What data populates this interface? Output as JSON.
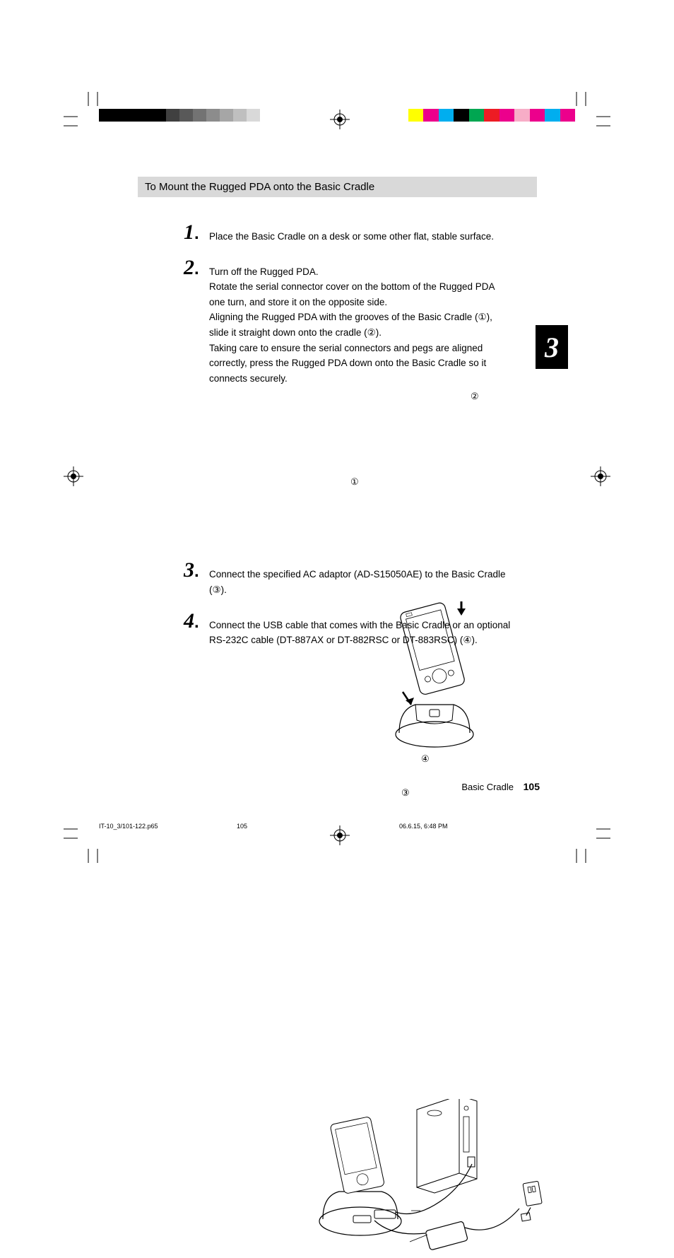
{
  "section_heading": "To Mount the Rugged PDA onto the Basic Cradle",
  "steps": [
    {
      "num": "1",
      "body": "Place the Basic Cradle on a desk or some other flat, stable surface."
    },
    {
      "num": "2",
      "body": "Turn off the Rugged PDA.\nRotate the serial connector cover on the bottom of the Rugged PDA one turn, and store it on the opposite side.\nAligning the Rugged PDA with the grooves of the Basic Cradle (①), slide it straight down onto the cradle (②).\nTaking care to ensure the serial connectors and pegs are aligned correctly, press the Rugged PDA down onto the Basic Cradle so it connects securely."
    },
    {
      "num": "3",
      "body": "Connect the specified AC adaptor (AD-S15050AE) to the Basic Cradle (③)."
    },
    {
      "num": "4",
      "body": "Connect the USB cable that comes with the Basic Cradle or an optional RS-232C cable (DT-887AX or DT-882RSC or DT-883RSC) (④)."
    }
  ],
  "chapter_tab": "3",
  "footer": {
    "section": "Basic Cradle",
    "page": "105"
  },
  "slug": {
    "file": "IT-10_3/101-122.p65",
    "page": "105",
    "date": "06.6.15, 6:48 PM"
  },
  "fig1_callouts": {
    "c1": "①",
    "c2": "②"
  },
  "fig2_callouts": {
    "c3": "③",
    "c4": "④"
  },
  "color_bar_left": [
    "#000000",
    "#000000",
    "#000000",
    "#000000",
    "#000000",
    "#404040",
    "#595959",
    "#737373",
    "#8c8c8c",
    "#a6a6a6",
    "#bfbfbf",
    "#d9d9d9",
    "#ffffff"
  ],
  "color_bar_right": [
    "#ffff00",
    "#ec008c",
    "#00aeef",
    "#000000",
    "#00a651",
    "#ed1c24",
    "#ec008c",
    "#f7adc7",
    "#ec008c",
    "#00aeef",
    "#ec008c"
  ],
  "crop_mark_color": "#000000",
  "reg_mark_color": "#000000"
}
